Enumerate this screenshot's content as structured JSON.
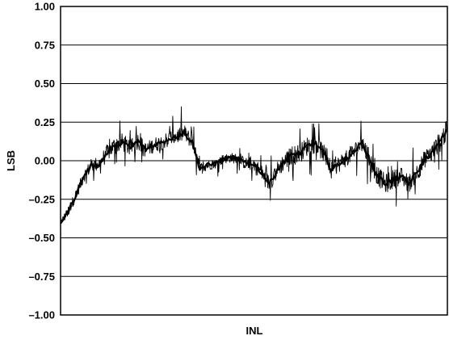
{
  "chart_data": {
    "type": "line",
    "title": "",
    "xlabel": "INL",
    "ylabel": "LSB",
    "ylim": [
      -1.0,
      1.0
    ],
    "yticks": [
      "1.00",
      "0.75",
      "0.50",
      "0.25",
      "0.00",
      "–0.25",
      "–0.50",
      "–0.75",
      "–1.00"
    ],
    "ytick_values": [
      1.0,
      0.75,
      0.5,
      0.25,
      0.0,
      -0.25,
      -0.5,
      -0.75,
      -1.0
    ],
    "grid": "horizontal",
    "legend": "none",
    "line_color": "#000000",
    "series": [
      {
        "x": [
          0,
          0.02,
          0.04,
          0.06,
          0.08,
          0.1,
          0.12,
          0.14,
          0.16,
          0.18,
          0.2,
          0.22,
          0.24,
          0.26,
          0.28,
          0.3,
          0.32,
          0.34,
          0.36,
          0.38,
          0.4,
          0.42,
          0.44,
          0.46,
          0.48,
          0.5,
          0.52,
          0.54,
          0.56,
          0.58,
          0.6,
          0.62,
          0.64,
          0.66,
          0.68,
          0.7,
          0.72,
          0.74,
          0.76,
          0.78,
          0.8,
          0.82,
          0.84,
          0.86,
          0.88,
          0.9,
          0.92,
          0.94,
          0.96,
          0.98,
          1.0
        ],
        "values": [
          -0.4,
          -0.33,
          -0.22,
          -0.1,
          -0.03,
          -0.02,
          0.05,
          0.1,
          0.12,
          0.08,
          0.13,
          0.07,
          0.1,
          0.12,
          0.14,
          0.16,
          0.18,
          0.12,
          -0.05,
          -0.03,
          -0.02,
          0.01,
          0.02,
          0.01,
          -0.02,
          -0.02,
          -0.08,
          -0.15,
          -0.06,
          0.0,
          0.04,
          0.05,
          0.1,
          0.11,
          0.05,
          -0.06,
          -0.02,
          0.02,
          0.06,
          0.12,
          0.0,
          -0.1,
          -0.15,
          -0.12,
          -0.1,
          -0.15,
          -0.08,
          0.0,
          0.05,
          0.12,
          0.2
        ],
        "spread": [
          0.05,
          0.07,
          0.08,
          0.09,
          0.1,
          0.11,
          0.12,
          0.13,
          0.13,
          0.12,
          0.12,
          0.11,
          0.11,
          0.11,
          0.12,
          0.12,
          0.12,
          0.11,
          0.08,
          0.07,
          0.07,
          0.07,
          0.07,
          0.08,
          0.09,
          0.1,
          0.11,
          0.12,
          0.12,
          0.13,
          0.13,
          0.14,
          0.14,
          0.14,
          0.13,
          0.12,
          0.12,
          0.12,
          0.13,
          0.14,
          0.14,
          0.14,
          0.14,
          0.14,
          0.13,
          0.13,
          0.13,
          0.14,
          0.14,
          0.15,
          0.16
        ]
      }
    ]
  }
}
